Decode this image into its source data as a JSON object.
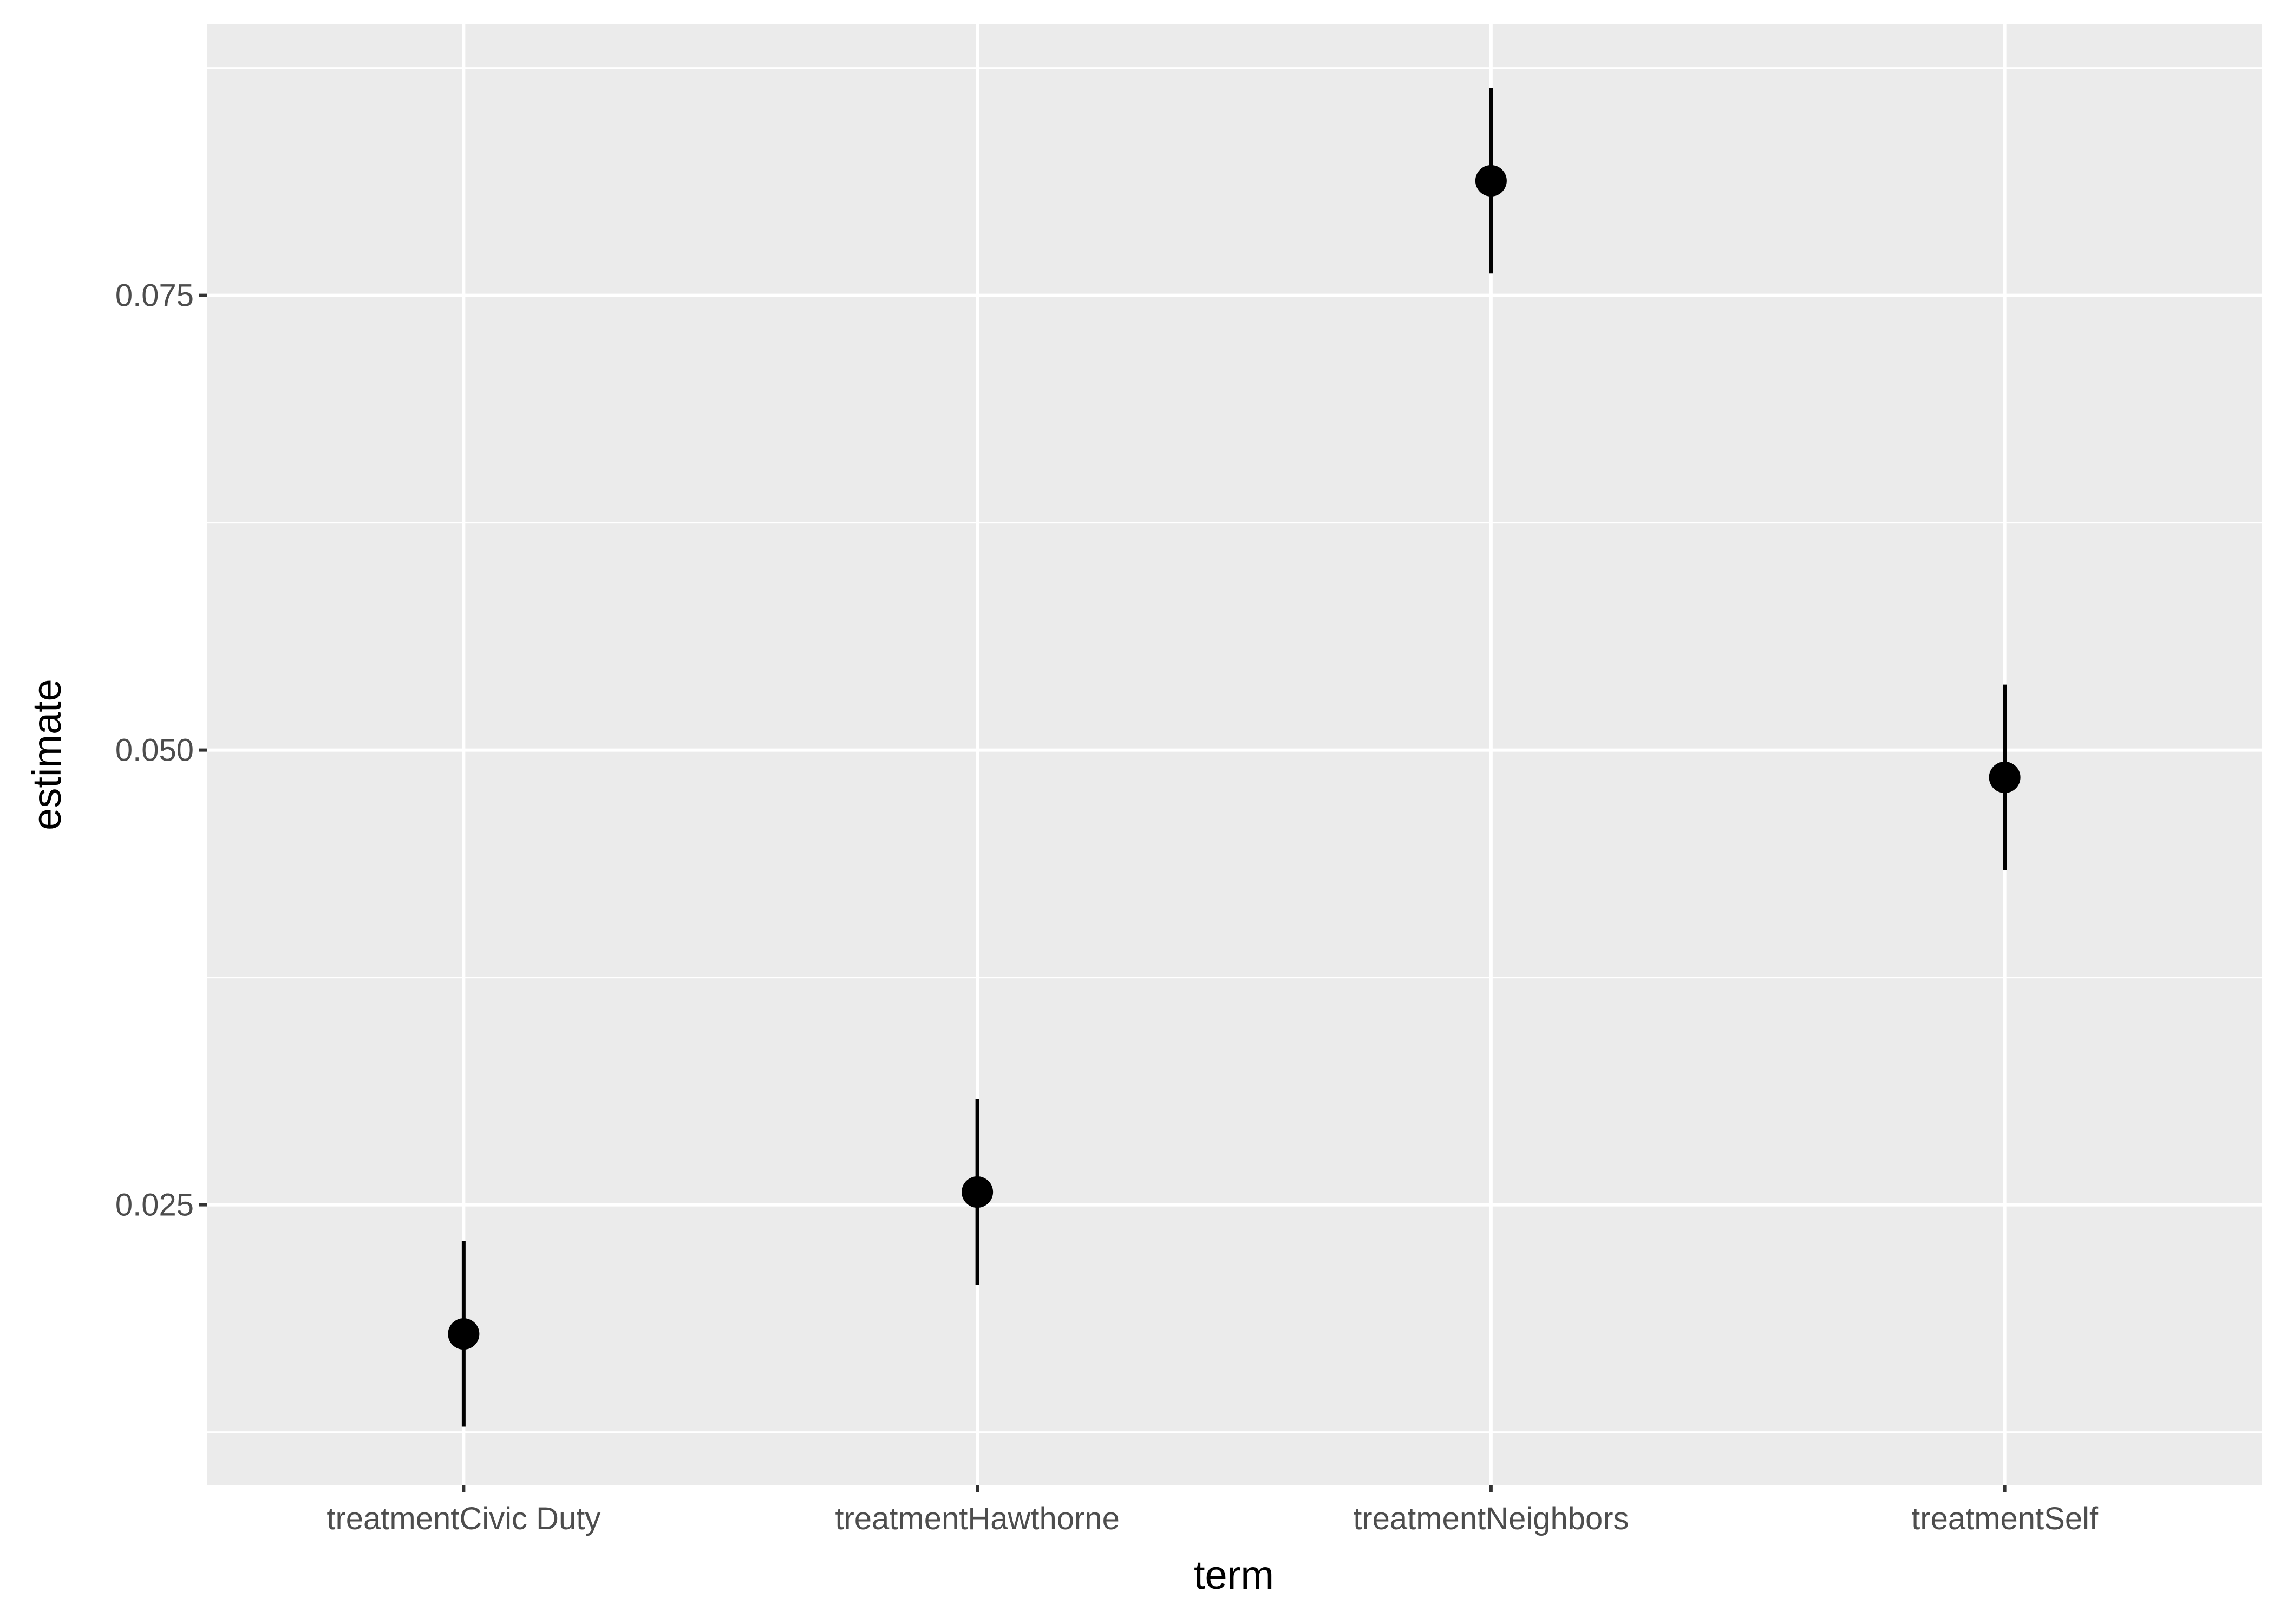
{
  "chart_data": {
    "type": "scatter",
    "title": "",
    "xlabel": "term",
    "ylabel": "estimate",
    "categories": [
      "treatmentCivic Duty",
      "treatmentHawthorne",
      "treatmentNeighbors",
      "treatmentSelf"
    ],
    "series": [
      {
        "estimates": [
          0.0179,
          0.0257,
          0.0813,
          0.0485
        ],
        "lower": [
          0.0128,
          0.0206,
          0.0762,
          0.0434
        ],
        "upper": [
          0.023,
          0.0308,
          0.0864,
          0.0536
        ]
      }
    ],
    "ylim": [
      0.0096,
      0.0899
    ],
    "yticks": [
      0.025,
      0.05,
      0.075
    ],
    "ytick_labels": [
      "0.025",
      "0.050",
      "0.075"
    ],
    "grid": true,
    "legend": "none",
    "colors": {
      "panel_background": "#ebebeb",
      "grid_major": "#ffffff",
      "point": "#000000",
      "tick_text": "#4d4d4d"
    }
  }
}
